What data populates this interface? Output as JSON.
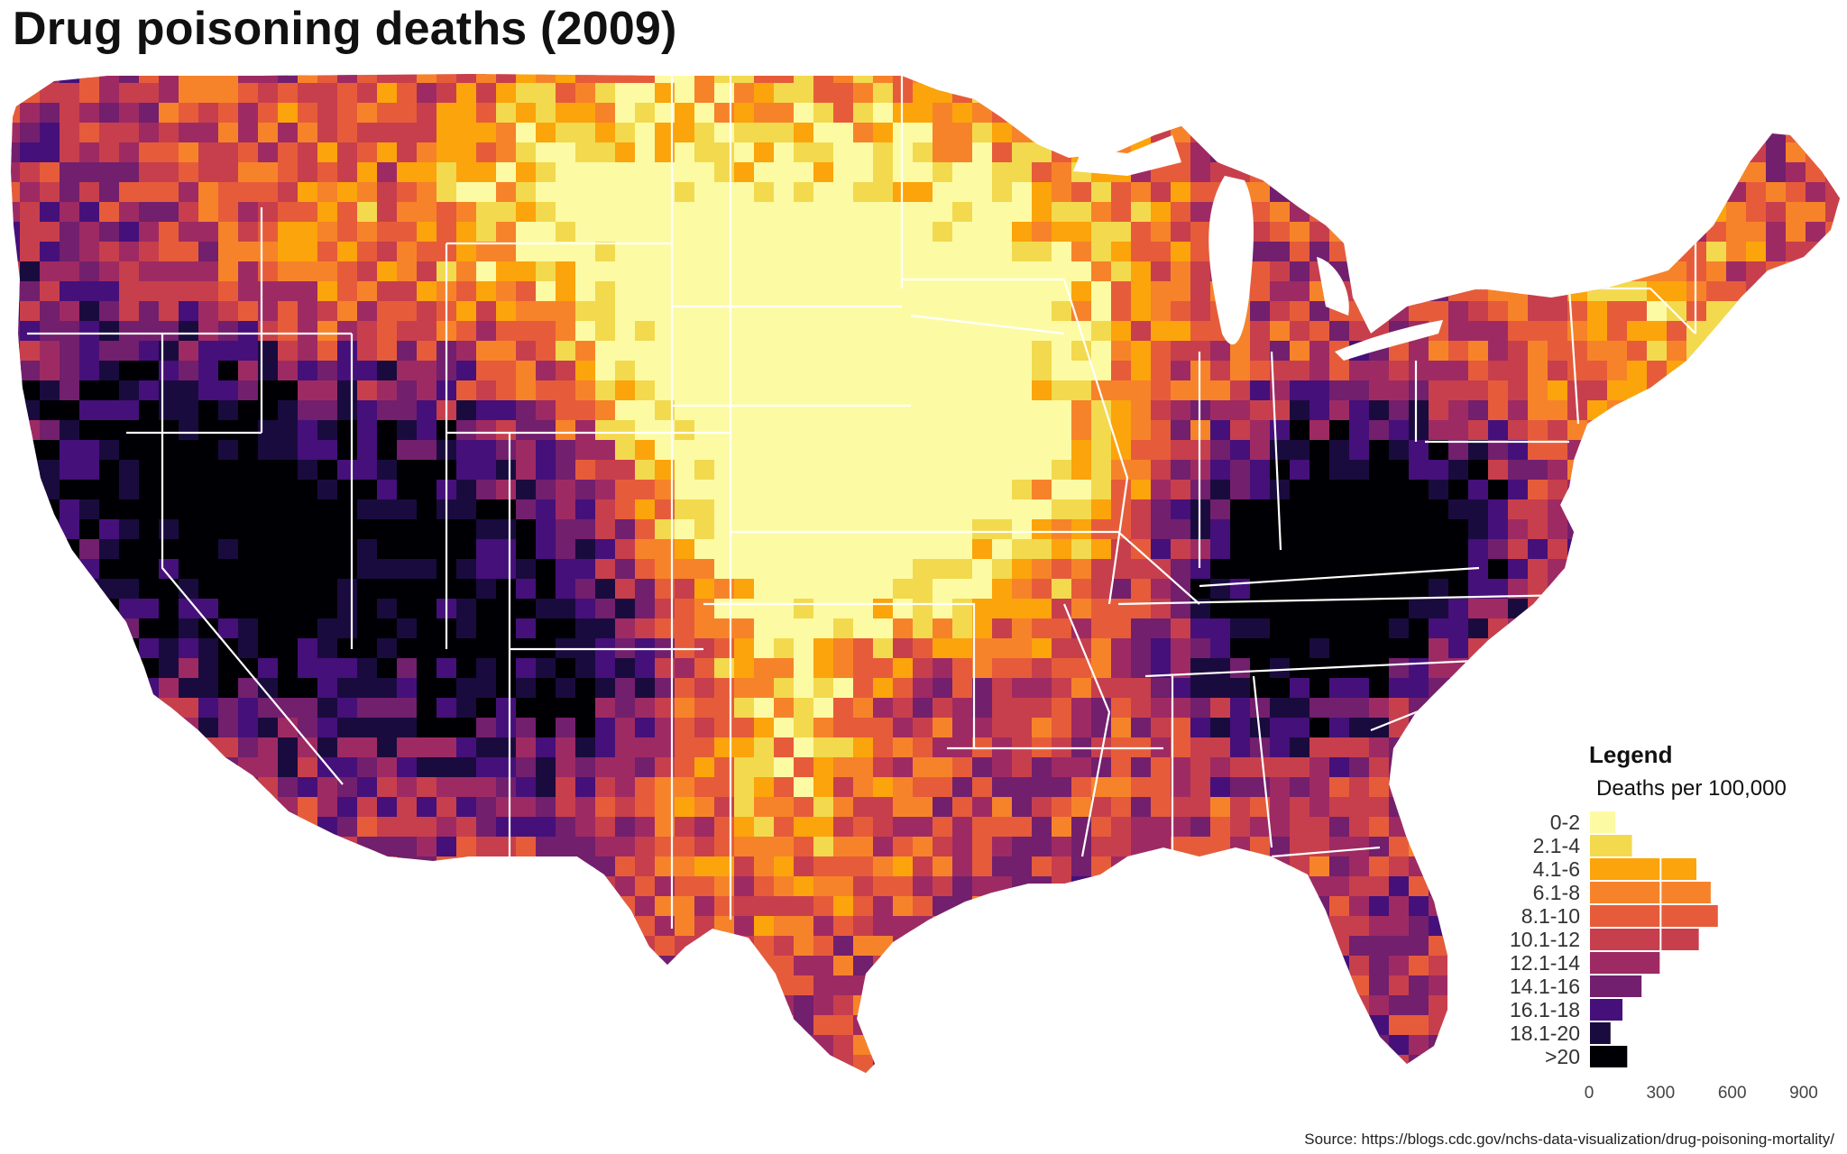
{
  "title": "Drug poisoning deaths (2009)",
  "source": "Source: https://blogs.cdc.gov/nchs-data-visualization/drug-poisoning-mortality/",
  "legend": {
    "title": "Legend",
    "subtitle": "Deaths per 100,000",
    "axis_ticks": [
      0,
      300,
      600,
      900
    ]
  },
  "chart_data": {
    "type": "bar",
    "orientation": "horizontal",
    "categories": [
      "0-2",
      "2.1-4",
      "4.1-6",
      "6.1-8",
      "8.1-10",
      "10.1-12",
      "12.1-14",
      "14.1-16",
      "16.1-18",
      "18.1-20",
      ">20"
    ],
    "values": [
      110,
      180,
      450,
      510,
      540,
      460,
      300,
      220,
      140,
      90,
      160
    ],
    "colors": [
      "#fcfba4",
      "#f3d94e",
      "#fba40b",
      "#f6832a",
      "#e65c3a",
      "#c73f4c",
      "#9e2a63",
      "#721f6d",
      "#45107a",
      "#1a0b3e",
      "#000004"
    ],
    "xlim": [
      0,
      900
    ],
    "xticks": [
      0,
      300,
      600,
      900
    ],
    "title": "Legend",
    "xlabel": "",
    "ylabel": ""
  },
  "map": {
    "region": "contiguous-united-states",
    "boundary_color": "#ffffff",
    "background": "#ffffff"
  }
}
